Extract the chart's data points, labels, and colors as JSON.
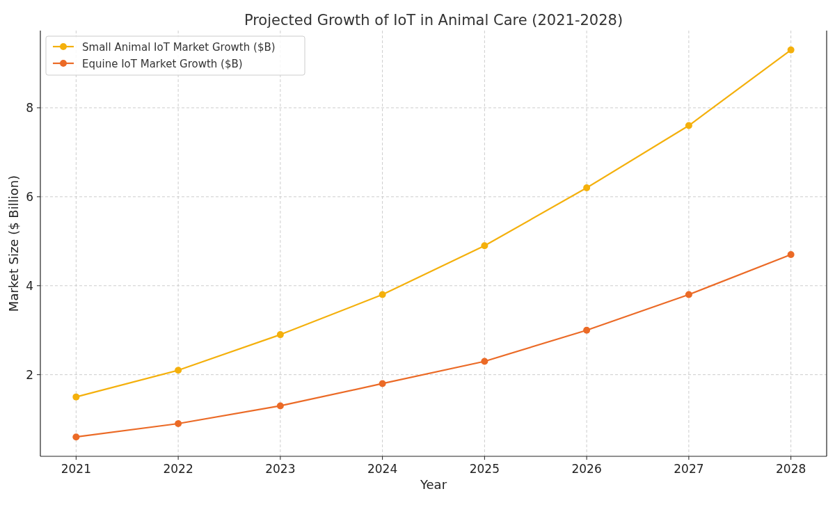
{
  "chart_data": {
    "type": "line",
    "title": "Projected Growth of IoT in Animal Care (2021-2028)",
    "xlabel": "Year",
    "ylabel": "Market Size ($ Billion)",
    "x": [
      2021,
      2022,
      2023,
      2024,
      2025,
      2026,
      2027,
      2028
    ],
    "series": [
      {
        "name": "Small Animal IoT Market Growth ($B)",
        "color": "#f4b00c",
        "values": [
          1.5,
          2.1,
          2.9,
          3.8,
          4.9,
          6.2,
          7.6,
          9.3
        ]
      },
      {
        "name": "Equine IoT Market Growth ($B)",
        "color": "#eb6a26",
        "values": [
          0.6,
          0.9,
          1.3,
          1.8,
          2.3,
          3.0,
          3.8,
          4.7
        ]
      }
    ],
    "xlim": [
      2020.65,
      2028.35
    ],
    "xticks": [
      2021,
      2022,
      2023,
      2024,
      2025,
      2026,
      2027,
      2028
    ],
    "ylim": [
      0.165,
      9.735
    ],
    "yticks": [
      2,
      4,
      6,
      8
    ],
    "grid": true,
    "legend": "top left",
    "marker": "circle",
    "line_style": "solid"
  }
}
